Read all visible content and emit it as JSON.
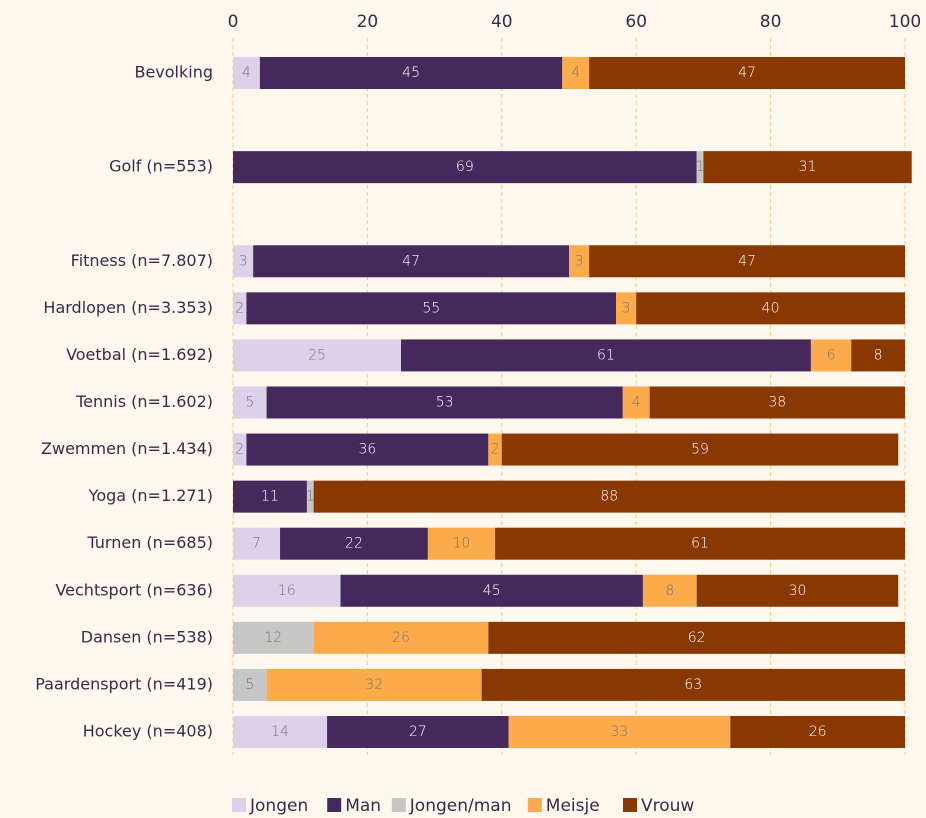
{
  "chart_data": {
    "type": "stacked_barh",
    "categories": [
      "Bevolking",
      null,
      "Golf (n=553)",
      null,
      "Fitness (n=7.807)",
      "Hardlopen (n=3.353)",
      "Voetbal (n=1.692)",
      "Tennis (n=1.602)",
      "Zwemmen (n=1.434)",
      "Yoga (n=1.271)",
      "Turnen (n=685)",
      "Vechtsport (n=636)",
      "Dansen (n=538)",
      "Paardensport (n=419)",
      "Hockey (n=408)"
    ],
    "series": [
      {
        "name": "Jongen",
        "color": "#dcd0ea",
        "values": [
          4,
          null,
          null,
          null,
          3,
          2,
          25,
          5,
          2,
          null,
          7,
          16,
          null,
          null,
          14
        ]
      },
      {
        "name": "Man",
        "color": "#46295c",
        "values": [
          45,
          null,
          69,
          null,
          47,
          55,
          61,
          53,
          36,
          11,
          22,
          45,
          null,
          null,
          27
        ]
      },
      {
        "name": "Jongen/man",
        "color": "#c6c6c6",
        "values": [
          null,
          null,
          1,
          null,
          null,
          null,
          null,
          null,
          null,
          1,
          null,
          null,
          12,
          5,
          null
        ]
      },
      {
        "name": "Meisje",
        "color": "#fbab4a",
        "values": [
          4,
          null,
          null,
          null,
          3,
          3,
          6,
          4,
          2,
          null,
          10,
          8,
          26,
          32,
          33
        ]
      },
      {
        "name": "Vrouw",
        "color": "#883800",
        "values": [
          47,
          null,
          31,
          null,
          47,
          40,
          8,
          38,
          59,
          88,
          61,
          30,
          62,
          63,
          26
        ]
      }
    ],
    "xlim": [
      0,
      100
    ],
    "xticks": [
      0,
      20,
      40,
      60,
      80,
      100
    ],
    "grid": true,
    "legend": "bottom"
  }
}
